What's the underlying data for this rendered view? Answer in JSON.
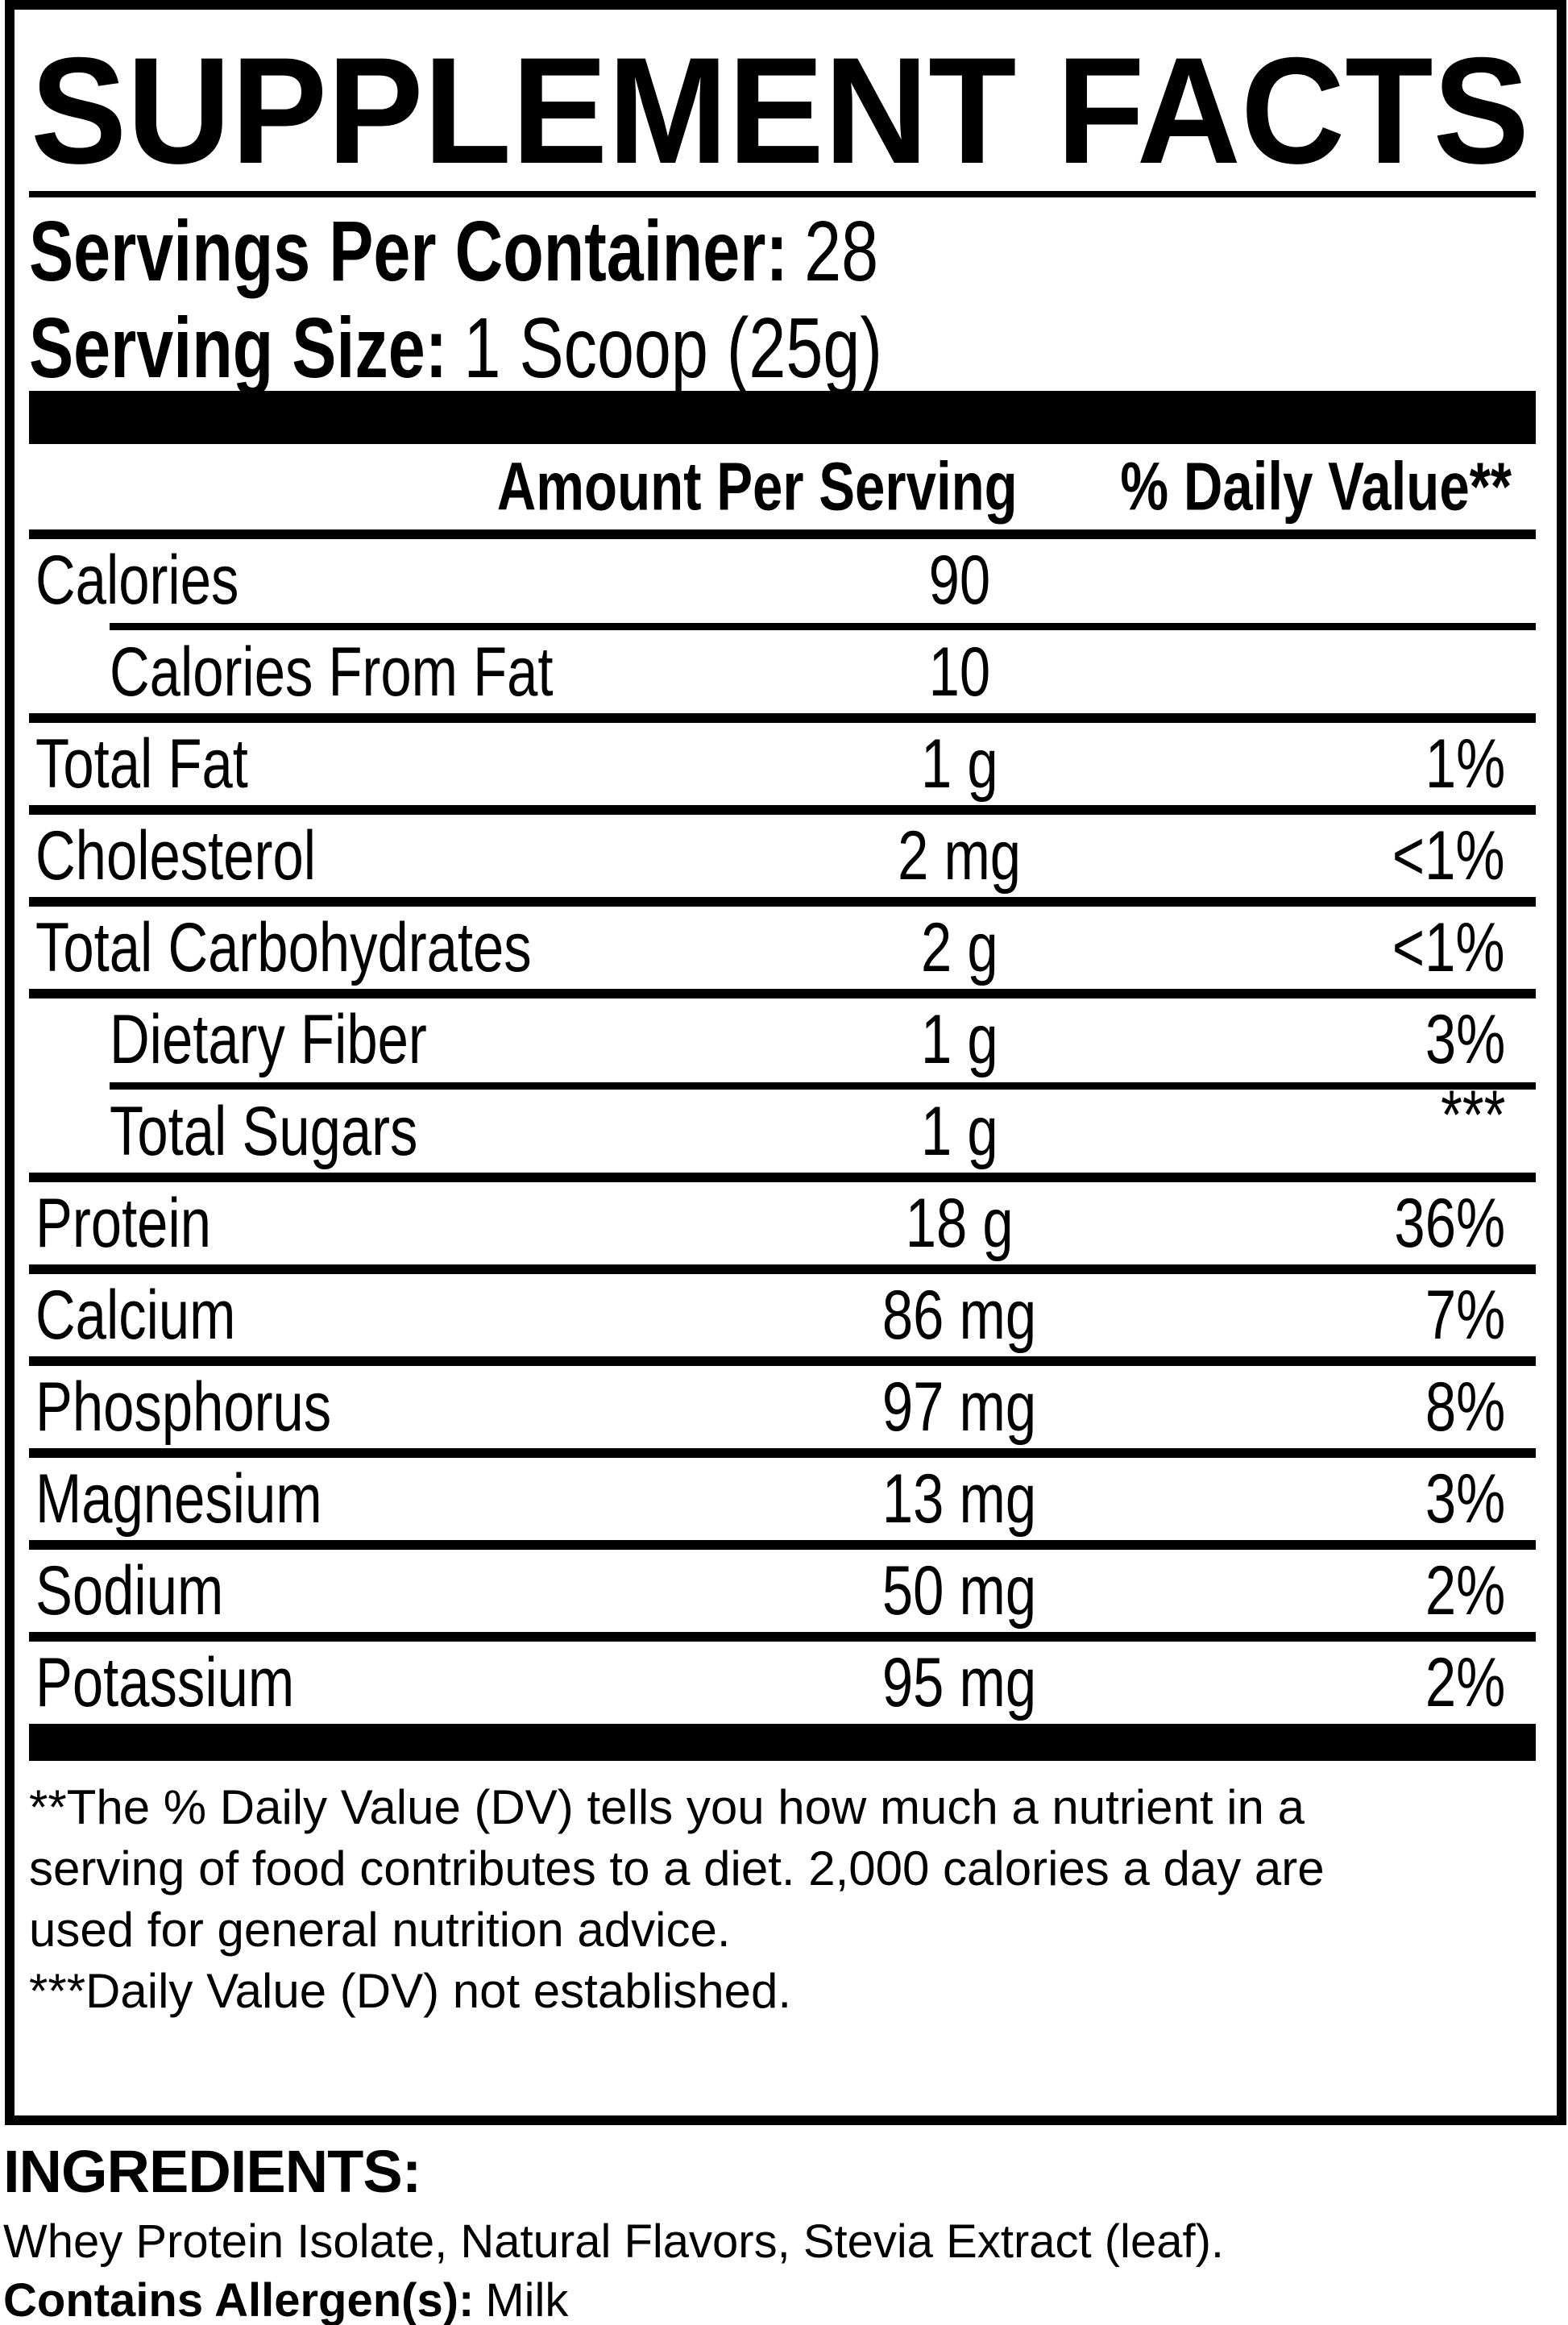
{
  "label": {
    "title": "SUPPLEMENT FACTS",
    "servings": {
      "label": "Servings Per Container:",
      "value": "28"
    },
    "serving_size": {
      "label": "Serving Size:",
      "value": "1 Scoop (25g)"
    },
    "columns": {
      "amount_header": "Amount Per Serving",
      "dv_header": "% Daily Value**"
    },
    "rows": [
      {
        "name": "Calories",
        "amount": "90",
        "dv": ""
      },
      {
        "name": "Calories From Fat",
        "amount": "10",
        "dv": ""
      },
      {
        "name": "Total Fat",
        "amount": "1 g",
        "dv": "1%"
      },
      {
        "name": "Cholesterol",
        "amount": "2 mg",
        "dv": "<1%"
      },
      {
        "name": "Total Carbohydrates",
        "amount": "2 g",
        "dv": "<1%"
      },
      {
        "name": "Dietary Fiber",
        "amount": "1 g",
        "dv": "3%"
      },
      {
        "name": "Total Sugars",
        "amount": "1 g",
        "dv": "***"
      },
      {
        "name": "Protein",
        "amount": "18 g",
        "dv": "36%"
      },
      {
        "name": "Calcium",
        "amount": "86 mg",
        "dv": "7%"
      },
      {
        "name": "Phosphorus",
        "amount": "97 mg",
        "dv": "8%"
      },
      {
        "name": "Magnesium",
        "amount": "13 mg",
        "dv": "3%"
      },
      {
        "name": "Sodium",
        "amount": "50 mg",
        "dv": "2%"
      },
      {
        "name": "Potassium",
        "amount": "95 mg",
        "dv": "2%"
      }
    ],
    "footnote": {
      "line1": "**The % Daily Value (DV) tells you how much a nutrient in a",
      "line2": "serving of food contributes to a diet. 2,000 calories a day are",
      "line3": "used for general nutrition advice.",
      "line4": "***Daily Value (DV) not established."
    }
  },
  "ingredients_section": {
    "heading": "INGREDIENTS:",
    "ingredients": "Whey Protein Isolate, Natural Flavors, Stevia Extract (leaf).",
    "contains_label": "Contains Allergen(s):",
    "contains_value": "Milk"
  },
  "colors": {
    "ink": "#000000",
    "paper": "#ffffff"
  }
}
